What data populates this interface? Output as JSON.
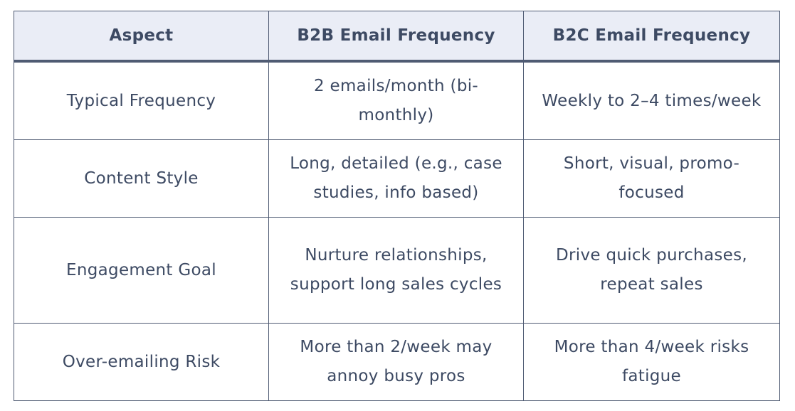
{
  "table": {
    "headers": [
      "Aspect",
      "B2B Email Frequency",
      "B2C Email Frequency"
    ],
    "rows": [
      [
        "Typical Frequency",
        "2 emails/month (bi-monthly)",
        "Weekly to 2–4 times/week"
      ],
      [
        "Content Style",
        "Long, detailed (e.g., case studies, info based)",
        "Short, visual, promo-focused"
      ],
      [
        "Engagement Goal",
        "Nurture relationships, support long sales cycles",
        "Drive quick purchases, repeat sales"
      ],
      [
        "Over-emailing Risk",
        "More than 2/week may annoy busy pros",
        "More than 4/week risks fatigue"
      ]
    ]
  },
  "colors": {
    "header_bg": "#eaedf6",
    "border": "#4f5b73",
    "text": "#3d4a63"
  }
}
